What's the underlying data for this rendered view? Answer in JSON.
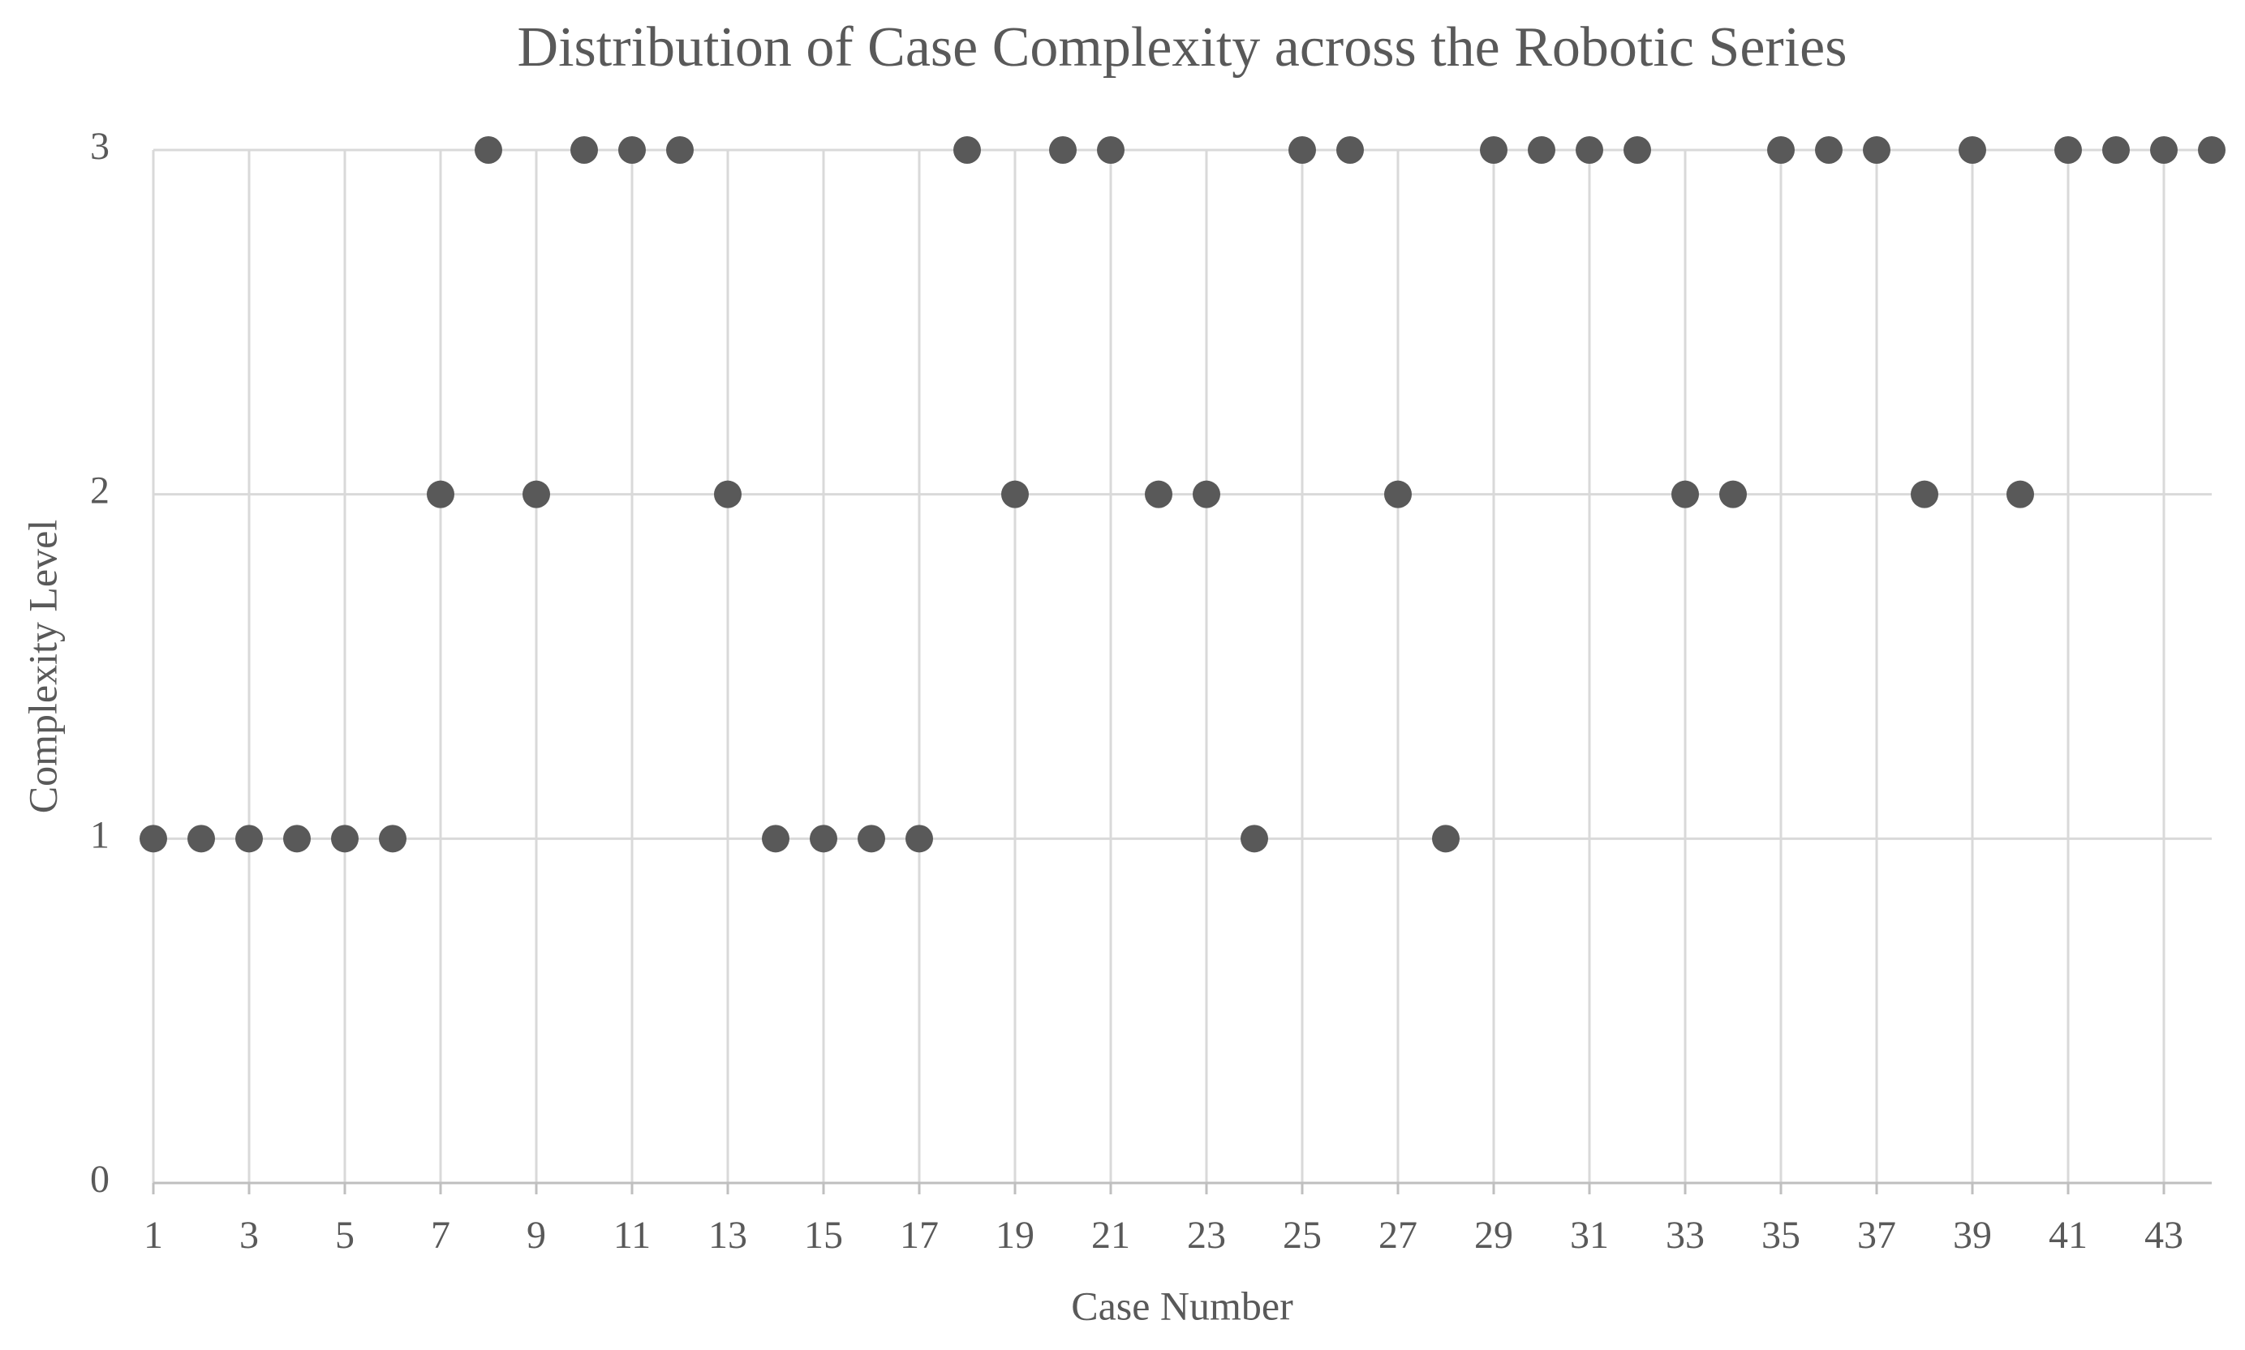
{
  "chart_data": {
    "type": "scatter",
    "title": "Distribution of Case Complexity across the Robotic Series",
    "x_label": "Case Number",
    "y_label": "Complexity Level",
    "x": [
      1,
      2,
      3,
      4,
      5,
      6,
      7,
      8,
      9,
      10,
      11,
      12,
      13,
      14,
      15,
      16,
      17,
      18,
      19,
      20,
      21,
      22,
      23,
      24,
      25,
      26,
      27,
      28,
      29,
      30,
      31,
      32,
      33,
      34,
      35,
      36,
      37,
      38,
      39,
      40,
      41,
      42,
      43,
      44
    ],
    "values": [
      1,
      1,
      1,
      1,
      1,
      1,
      2,
      3,
      2,
      3,
      3,
      3,
      2,
      1,
      1,
      1,
      1,
      3,
      2,
      3,
      3,
      2,
      2,
      1,
      3,
      3,
      2,
      1,
      3,
      3,
      3,
      3,
      2,
      2,
      3,
      3,
      3,
      2,
      3,
      2,
      3,
      3,
      3,
      3
    ],
    "color": "#595959",
    "xlim": [
      1,
      44
    ],
    "xticks": [
      1,
      3,
      5,
      7,
      9,
      11,
      13,
      15,
      17,
      19,
      21,
      23,
      25,
      27,
      29,
      31,
      33,
      35,
      37,
      39,
      41,
      43
    ],
    "ylim": [
      0,
      3
    ],
    "yticks": [
      0,
      1,
      2,
      3
    ],
    "grid": true
  }
}
